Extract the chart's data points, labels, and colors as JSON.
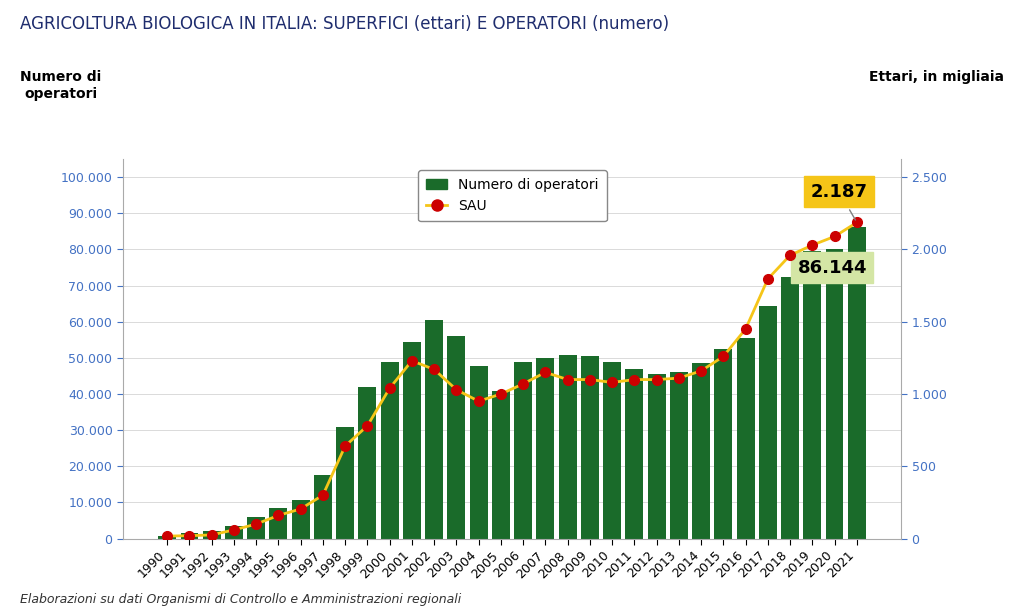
{
  "title": "AGRICOLTURA BIOLOGICA IN ITALIA: SUPERFICI (ettari) E OPERATORI (numero)",
  "ylabel_left": "Numero di\noperatori",
  "ylabel_right": "Ettari, in migliaia",
  "footnote": "Elaborazioni su dati Organismi di Controllo e Amministrazioni regionali",
  "years": [
    1990,
    1991,
    1992,
    1993,
    1994,
    1995,
    1996,
    1997,
    1998,
    1999,
    2000,
    2001,
    2002,
    2003,
    2004,
    2005,
    2006,
    2007,
    2008,
    2009,
    2010,
    2011,
    2012,
    2013,
    2014,
    2015,
    2016,
    2017,
    2018,
    2019,
    2020,
    2021
  ],
  "operatori": [
    700,
    1600,
    2000,
    3500,
    6000,
    8500,
    10800,
    17500,
    30800,
    42000,
    48800,
    54300,
    60600,
    56000,
    47800,
    40800,
    48800,
    50100,
    50800,
    50500,
    48800,
    46800,
    45600,
    46000,
    48500,
    52500,
    55600,
    64300,
    72500,
    79700,
    80000,
    86144
  ],
  "sau_thousands": [
    17,
    20,
    25,
    60,
    100,
    160,
    205,
    300,
    640,
    780,
    1040,
    1230,
    1170,
    1030,
    950,
    1000,
    1070,
    1150,
    1100,
    1100,
    1080,
    1100,
    1100,
    1110,
    1160,
    1260,
    1450,
    1796,
    1960,
    2030,
    2090,
    2187
  ],
  "bar_color": "#1a6b2a",
  "line_color": "#f5c518",
  "dot_color": "#cc0000",
  "annotation_bar_color": "#d4e6a5",
  "annotation_sau_color": "#f5c518",
  "legend_bar_label": "Numero di operatori",
  "legend_line_label": "SAU",
  "last_bar_value": "86.144",
  "last_sau_value": "2.187",
  "ylim_left": [
    0,
    105000
  ],
  "ylim_right": [
    0,
    2625
  ],
  "yticks_left": [
    0,
    10000,
    20000,
    30000,
    40000,
    50000,
    60000,
    70000,
    80000,
    90000,
    100000
  ],
  "yticks_right": [
    0,
    500,
    1000,
    1500,
    2000,
    2500
  ],
  "title_color": "#1f2d6e",
  "label_color": "#000000",
  "tick_color": "#4472c4",
  "background_color": "#ffffff",
  "title_fontsize": 12,
  "axis_label_fontsize": 10,
  "tick_fontsize": 9,
  "legend_fontsize": 10
}
